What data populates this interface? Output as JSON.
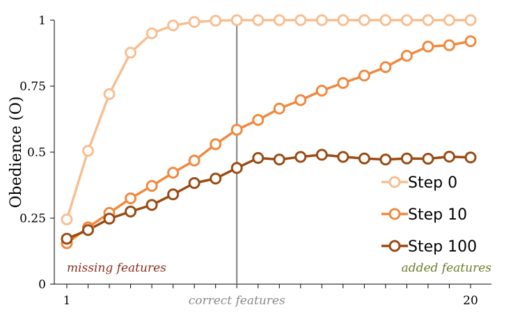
{
  "chart_data": {
    "type": "line",
    "ylabel": "Obedience (O)",
    "ylim": [
      0,
      1
    ],
    "xlim": [
      1,
      20
    ],
    "x": [
      1,
      2,
      3,
      4,
      5,
      6,
      7,
      8,
      9,
      10,
      11,
      12,
      13,
      14,
      15,
      16,
      17,
      18,
      19,
      20
    ],
    "x_tick_labels": [
      {
        "x": 1,
        "label": "1"
      },
      {
        "x": 20,
        "label": "20"
      }
    ],
    "y_ticks": [
      {
        "value": 0,
        "label": "0"
      },
      {
        "value": 0.25,
        "label": "0.25"
      },
      {
        "value": 0.5,
        "label": "0.5"
      },
      {
        "value": 0.75,
        "label": "0.75"
      },
      {
        "value": 1,
        "label": "1"
      }
    ],
    "vertical_marker": {
      "x": 9,
      "label": "correct features"
    },
    "annotations": [
      {
        "text": "missing features",
        "side": "left",
        "color": "#8B2E1F"
      },
      {
        "text": "added features",
        "side": "right",
        "color": "#6B7D2C"
      }
    ],
    "legend_position": "bottom-right",
    "series": [
      {
        "name": "Step 0",
        "color": "#F8BE90",
        "values": [
          0.245,
          0.505,
          0.72,
          0.877,
          0.95,
          0.98,
          0.993,
          0.998,
          1.0,
          1.0,
          1.0,
          1.0,
          1.0,
          1.0,
          1.0,
          1.0,
          1.0,
          1.0,
          1.0,
          1.0
        ]
      },
      {
        "name": "Step 10",
        "color": "#F0883E",
        "values": [
          0.155,
          0.215,
          0.27,
          0.325,
          0.372,
          0.422,
          0.468,
          0.53,
          0.585,
          0.622,
          0.665,
          0.697,
          0.733,
          0.762,
          0.79,
          0.822,
          0.865,
          0.9,
          0.905,
          0.92
        ]
      },
      {
        "name": "Step 100",
        "color": "#9A4A12",
        "values": [
          0.172,
          0.205,
          0.248,
          0.275,
          0.3,
          0.34,
          0.383,
          0.4,
          0.44,
          0.478,
          0.472,
          0.482,
          0.49,
          0.482,
          0.476,
          0.472,
          0.476,
          0.475,
          0.483,
          0.48
        ]
      }
    ]
  }
}
